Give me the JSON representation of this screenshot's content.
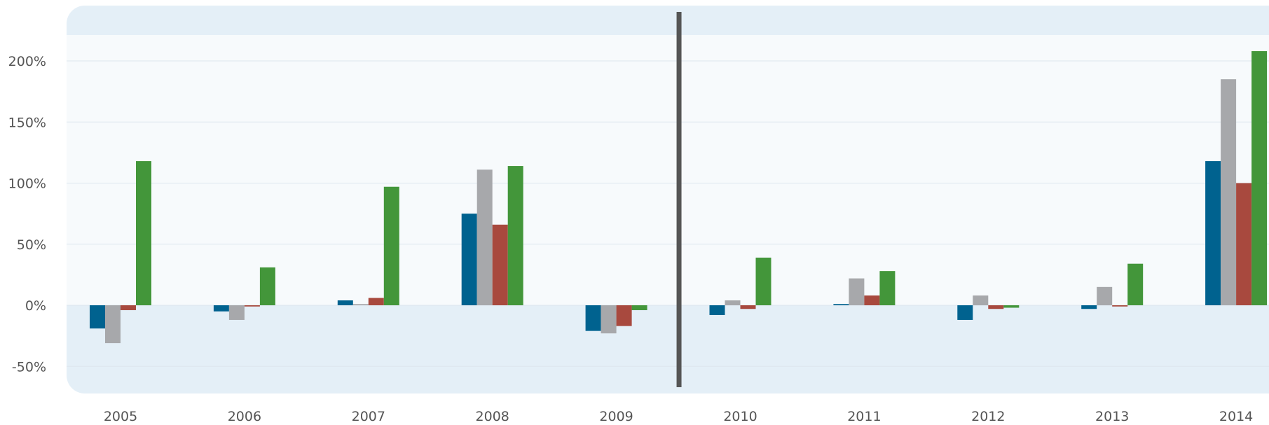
{
  "chart_data": {
    "type": "bar",
    "title": "",
    "xlabel": "",
    "ylabel": "",
    "ylim": [
      -70,
      230
    ],
    "yticks": [
      200,
      150,
      100,
      50,
      0,
      -50
    ],
    "ytick_labels": [
      "200%",
      "150%",
      "100%",
      "50%",
      "0%",
      "-50%"
    ],
    "categories": [
      "2005",
      "2006",
      "2007",
      "2008",
      "2009",
      "2010",
      "2011",
      "2012",
      "2013",
      "2014"
    ],
    "divider_after_category": "2009",
    "series": [
      {
        "color": "#00628f",
        "values": [
          -19,
          -5,
          4,
          75,
          -21,
          -8,
          1,
          -12,
          -3,
          118
        ]
      },
      {
        "color": "#a7a8ab",
        "values": [
          -31,
          -12,
          1,
          111,
          -23,
          4,
          22,
          8,
          15,
          185
        ]
      },
      {
        "color": "#a8493e",
        "values": [
          -4,
          -1,
          6,
          66,
          -17,
          -3,
          8,
          -3,
          -1,
          100
        ]
      },
      {
        "color": "#43963a",
        "values": [
          118,
          31,
          97,
          114,
          -4,
          39,
          28,
          -2,
          34,
          208
        ]
      }
    ],
    "colors": {
      "band": "#e4eff7",
      "plot": "#f7fafc",
      "divider": "#555555",
      "grid": "#dde6ee"
    }
  }
}
